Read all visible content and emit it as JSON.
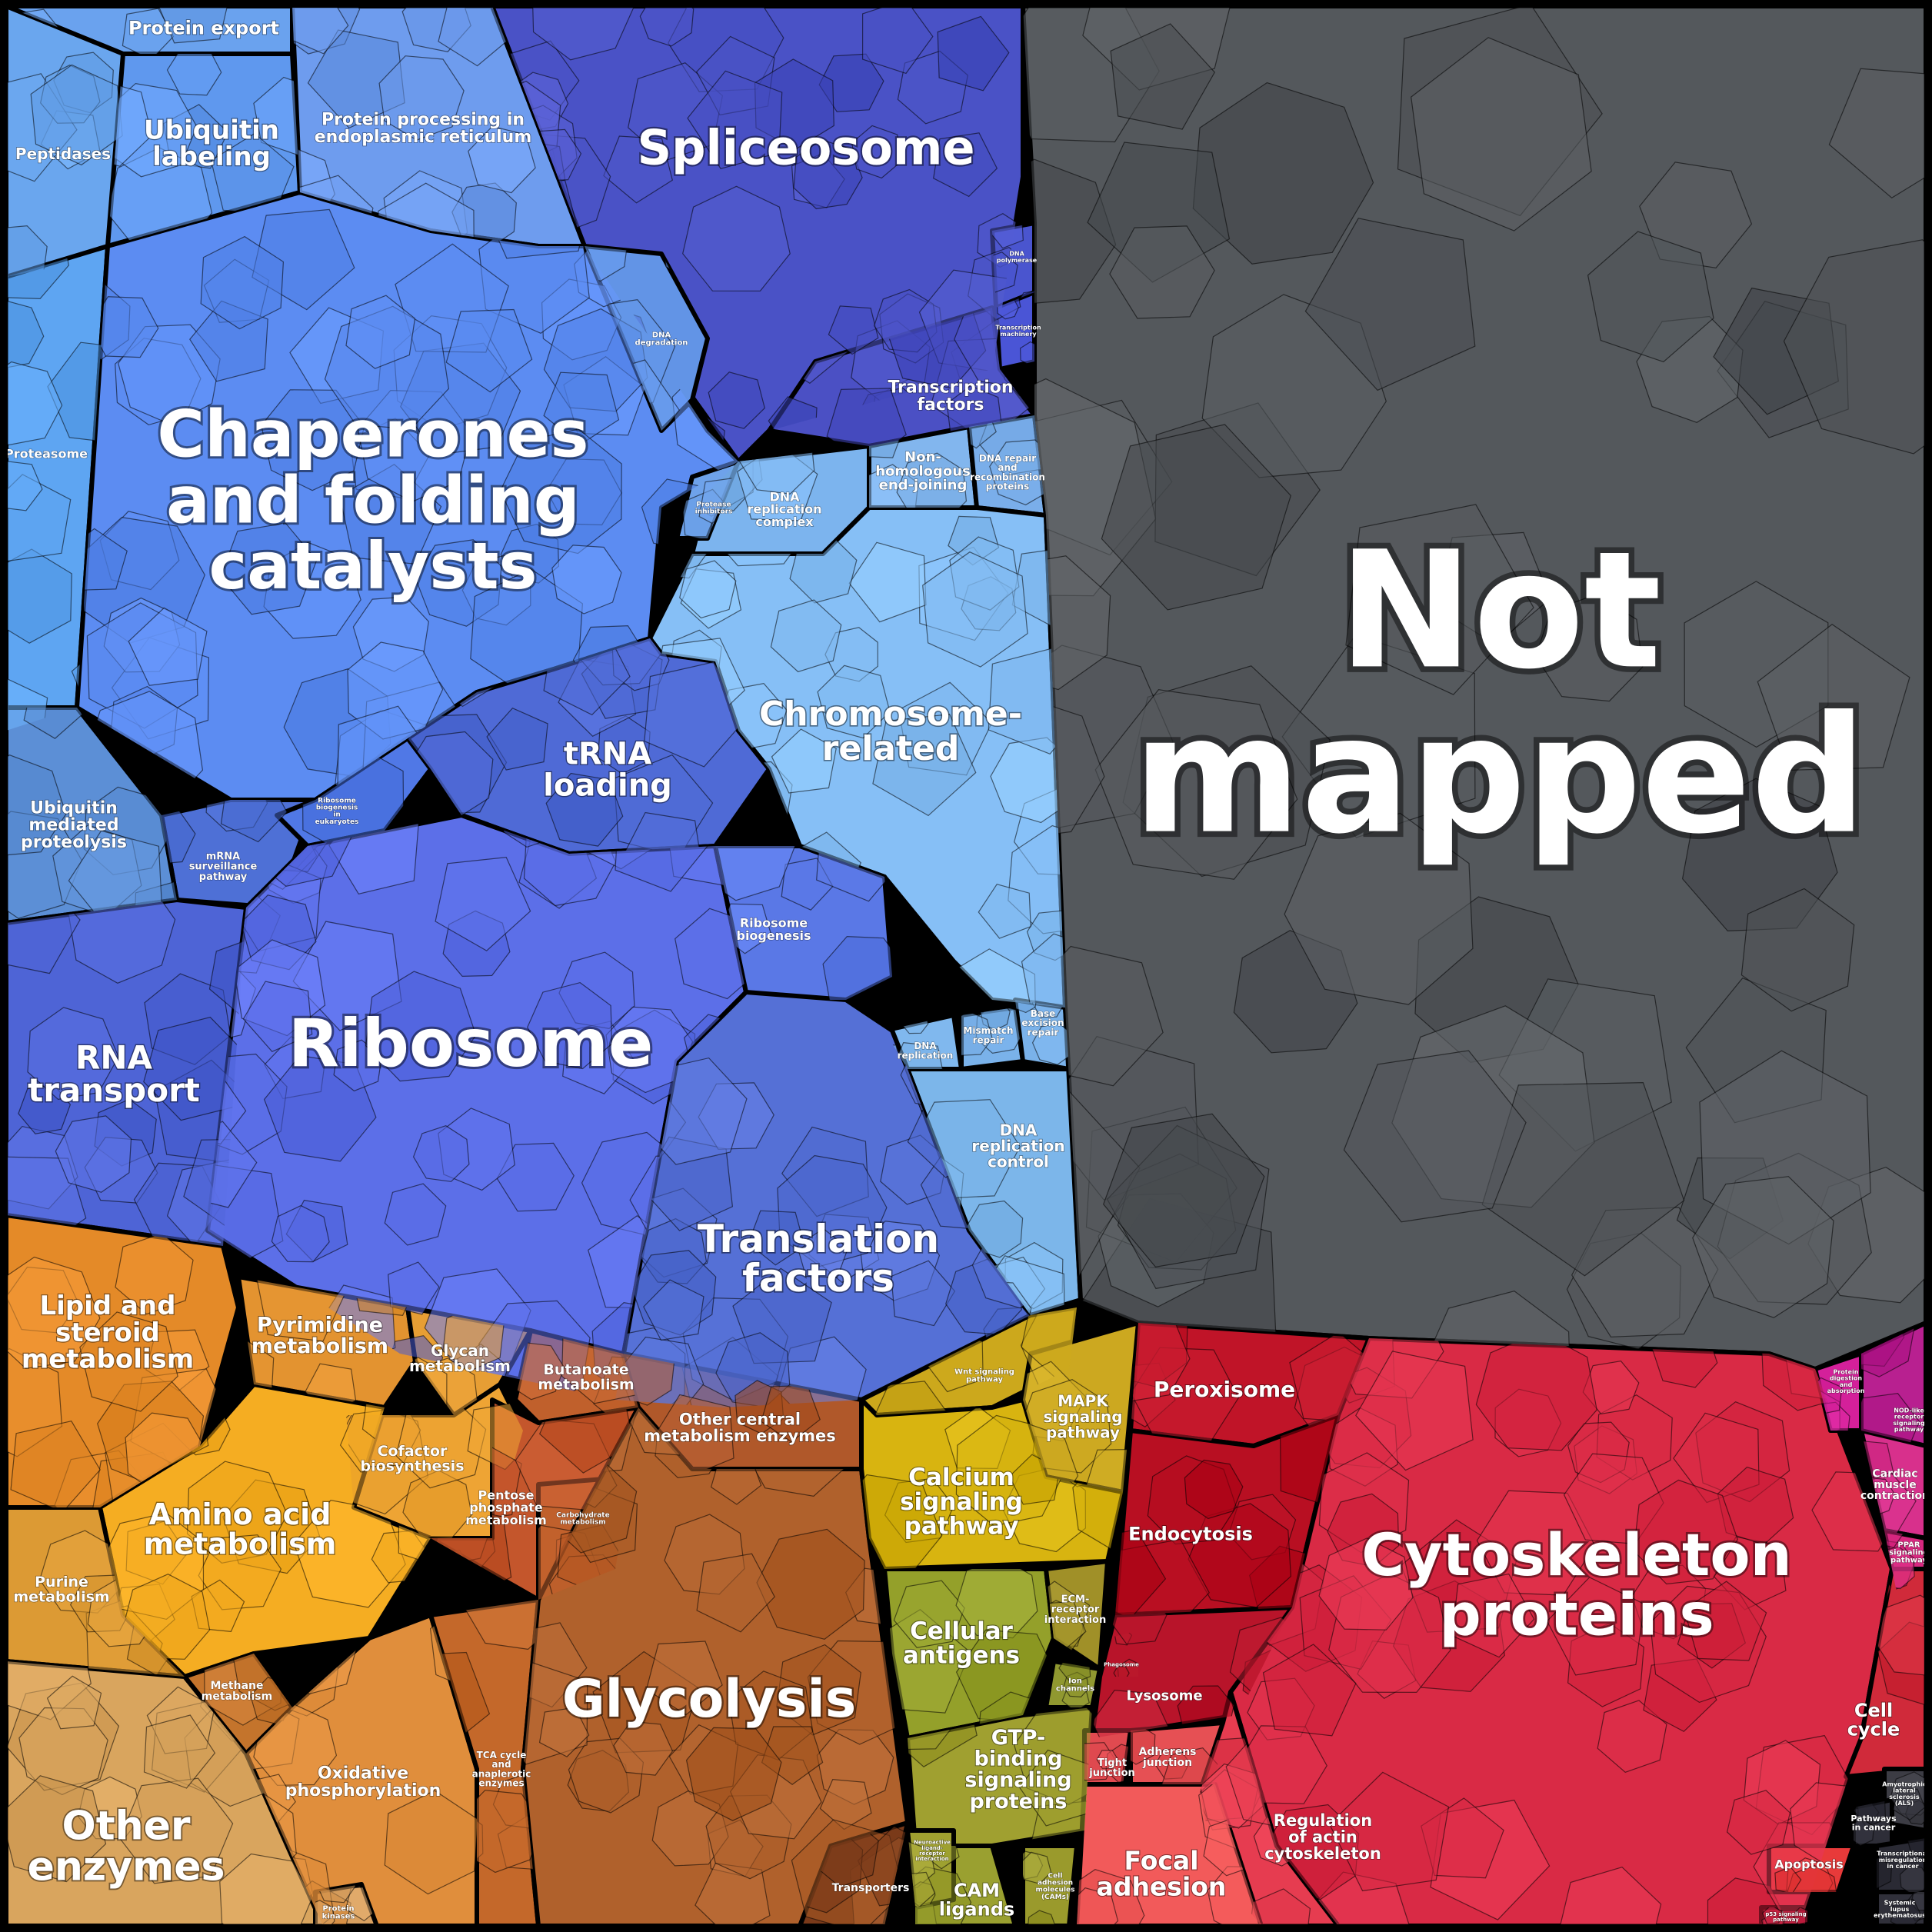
{
  "colors": {
    "frame": "#000000",
    "blue_dark": "#4a52c6",
    "blue_mid": "#5a7fe6",
    "blue_light": "#7fb6f0",
    "blue_ribosome": "#5c6fe8",
    "orange": "#e39335",
    "brown": "#b0612c",
    "yellow": "#c7a81d",
    "olive": "#9a9a2c",
    "red": "#d92a45",
    "magenta": "#c82f9c",
    "not_mapped": "#54585c"
  },
  "regions": [
    {
      "id": "protein-export",
      "label": "Protein export",
      "color": "#6aa2ee"
    },
    {
      "id": "peptidases",
      "label": "Peptidases",
      "color": "#6aa6ee"
    },
    {
      "id": "ubiquitin-labeling",
      "label": "Ubiquitin labeling",
      "color": "#5f98ee"
    },
    {
      "id": "protein-processing-er",
      "label": "Protein processing in endoplasmic reticulum",
      "color": "#6e9cee"
    },
    {
      "id": "spliceosome",
      "label": "Spliceosome",
      "color": "#4a52c6"
    },
    {
      "id": "proteasome",
      "label": "Proteasome",
      "color": "#5ea5f2"
    },
    {
      "id": "chaperones",
      "label": "Chaperones and folding catalysts",
      "color": "#5c8cf2"
    },
    {
      "id": "dna-degradation",
      "label": "DNA degradation",
      "color": "#6294e6"
    },
    {
      "id": "dna-polymerase",
      "label": "DNA polymerase",
      "color": "#4a55cf"
    },
    {
      "id": "transcription-machinery",
      "label": "Transcription machinery",
      "color": "#4a55d6"
    },
    {
      "id": "transcription-factors",
      "label": "Transcription factors",
      "color": "#4b50c4"
    },
    {
      "id": "mrna-surveillance",
      "label": "mRNA surveillance pathway",
      "color": "#4e70d6"
    },
    {
      "id": "non-homologous",
      "label": "Non-homologous end-joining",
      "color": "#82b6ee"
    },
    {
      "id": "dna-repair-recombination",
      "label": "DNA repair and recombination proteins",
      "color": "#7aaeea"
    },
    {
      "id": "dna-replication-complex",
      "label": "DNA replication complex",
      "color": "#7cb4ee"
    },
    {
      "id": "protease-inhibitors",
      "label": "Protease inhibitors",
      "color": "#6ea2ea"
    },
    {
      "id": "chromosome-related",
      "label": "Chromosome-related",
      "color": "#86bff6"
    },
    {
      "id": "trna-loading",
      "label": "tRNA loading",
      "color": "#4f6ad6"
    },
    {
      "id": "ribosome-biogenesis-euk",
      "label": "Ribosome biogenesis in eukaryotes",
      "color": "#5078e6"
    },
    {
      "id": "ubiquitin-mediated",
      "label": "Ubiquitin mediated proteolysis",
      "color": "#5c8fd6"
    },
    {
      "id": "rna-transport",
      "label": "RNA transport",
      "color": "#4e64d6"
    },
    {
      "id": "ribosome",
      "label": "Ribosome",
      "color": "#5c6fe8"
    },
    {
      "id": "ribosome-biogenesis",
      "label": "Ribosome biogenesis",
      "color": "#5a78e6"
    },
    {
      "id": "dna-replication",
      "label": "DNA replication",
      "color": "#80b8ee"
    },
    {
      "id": "mismatch-repair",
      "label": "Mismatch repair",
      "color": "#7ab2ea"
    },
    {
      "id": "base-excision-repair",
      "label": "Base excision repair",
      "color": "#7ab2ea"
    },
    {
      "id": "dna-replication-control",
      "label": "DNA replication control",
      "color": "#7cb6ea"
    },
    {
      "id": "translation-factors",
      "label": "Translation factors",
      "color": "#5570d6"
    },
    {
      "id": "not-mapped",
      "label": "Not mapped",
      "color": "#54585c"
    },
    {
      "id": "lipid-steroid",
      "label": "Lipid and steroid metabolism",
      "color": "#e48a28"
    },
    {
      "id": "pyrimidine",
      "label": "Pyrimidine metabolism",
      "color": "#e39330"
    },
    {
      "id": "glycan",
      "label": "Glycan metabolism",
      "color": "#e79e34"
    },
    {
      "id": "butanoate",
      "label": "Butanoate metabolism",
      "color": "#c0602c"
    },
    {
      "id": "other-central",
      "label": "Other central metabolism enzymes",
      "color": "#b0582a"
    },
    {
      "id": "cofactor",
      "label": "Cofactor biosynthesis",
      "color": "#eea434"
    },
    {
      "id": "amino-acid",
      "label": "Amino acid metabolism",
      "color": "#f5ad22"
    },
    {
      "id": "purine",
      "label": "Purine metabolism",
      "color": "#dc9a34"
    },
    {
      "id": "pentose",
      "label": "Pentose phosphate metabolism",
      "color": "#c4562c"
    },
    {
      "id": "carbohydrate",
      "label": "Carbohydrate metabolism",
      "color": "#c0602c"
    },
    {
      "id": "methane",
      "label": "Methane metabolism",
      "color": "#c4742c"
    },
    {
      "id": "oxidative",
      "label": "Oxidative phosphorylation",
      "color": "#e08e3c"
    },
    {
      "id": "tca",
      "label": "TCA cycle and anaplerotic enzymes",
      "color": "#c4682a"
    },
    {
      "id": "glycolysis",
      "label": "Glycolysis",
      "color": "#b0612c"
    },
    {
      "id": "other-enzymes",
      "label": "Other enzymes",
      "color": "#d9a55e"
    },
    {
      "id": "protein-kinases",
      "label": "Protein kinases",
      "color": "#d8a060"
    },
    {
      "id": "transporters",
      "label": "Transporters",
      "color": "#7a3a1a"
    },
    {
      "id": "wnt",
      "label": "Wnt signaling pathway",
      "color": "#cca81c"
    },
    {
      "id": "mapk",
      "label": "MAPK signaling pathway",
      "color": "#cca820"
    },
    {
      "id": "calcium",
      "label": "Calcium signaling pathway",
      "color": "#d8b410"
    },
    {
      "id": "cellular-antigens",
      "label": "Cellular antigens",
      "color": "#94a02a"
    },
    {
      "id": "ecm-receptor",
      "label": "ECM-receptor interaction",
      "color": "#a09028"
    },
    {
      "id": "ion-channels",
      "label": "Ion channels",
      "color": "#909830"
    },
    {
      "id": "gtp-binding",
      "label": "GTP-binding signaling proteins",
      "color": "#a0a030"
    },
    {
      "id": "cam-ligands",
      "label": "CAM ligands",
      "color": "#9aa030"
    },
    {
      "id": "cell-adhesion",
      "label": "Cell adhesion molecules (CAMs)",
      "color": "#9a9a2c"
    },
    {
      "id": "neuroactive",
      "label": "Neuroactive ligand-receptor interaction",
      "color": "#a0a030"
    },
    {
      "id": "peroxisome",
      "label": "Peroxisome",
      "color": "#c01428"
    },
    {
      "id": "endocytosis",
      "label": "Endocytosis",
      "color": "#b80f22"
    },
    {
      "id": "phagosome",
      "label": "Phagosome",
      "color": "#b01020"
    },
    {
      "id": "lysosome",
      "label": "Lysosome",
      "color": "#b8142a"
    },
    {
      "id": "tight-junction",
      "label": "Tight junction",
      "color": "#e04a50"
    },
    {
      "id": "adherens-junction",
      "label": "Adherens junction",
      "color": "#e65054"
    },
    {
      "id": "cytoskeleton",
      "label": "Cytoskeleton proteins",
      "color": "#d92a45"
    },
    {
      "id": "regulation-actin",
      "label": "Regulation of actin cytoskeleton",
      "color": "#e63c50"
    },
    {
      "id": "focal-adhesion",
      "label": "Focal adhesion",
      "color": "#f25a5a"
    },
    {
      "id": "protein-digestion",
      "label": "Protein digestion and absorption",
      "color": "#d4209a"
    },
    {
      "id": "nod-like",
      "label": "NOD-like receptor signaling pathway",
      "color": "#b82090"
    },
    {
      "id": "cardiac",
      "label": "Cardiac muscle contraction",
      "color": "#d8308c"
    },
    {
      "id": "ppar",
      "label": "PPAR signaling pathway",
      "color": "#d82880"
    },
    {
      "id": "cell-cycle",
      "label": "Cell cycle",
      "color": "#d02a3a"
    },
    {
      "id": "amyotrophic",
      "label": "Amyotrophic lateral sclerosis (ALS)",
      "color": "#3c3c44"
    },
    {
      "id": "pathways-cancer",
      "label": "Pathways in cancer",
      "color": "#2e2e38"
    },
    {
      "id": "transcriptional-misreg",
      "label": "Transcriptional misregulation in cancer",
      "color": "#2a2a34"
    },
    {
      "id": "apoptosis",
      "label": "Apoptosis",
      "color": "#e83a3a"
    },
    {
      "id": "systemic-lupus",
      "label": "Systemic lupus erythematosus",
      "color": "#30303a"
    },
    {
      "id": "p53",
      "label": "p53 signaling pathway",
      "color": "#c02040"
    }
  ]
}
